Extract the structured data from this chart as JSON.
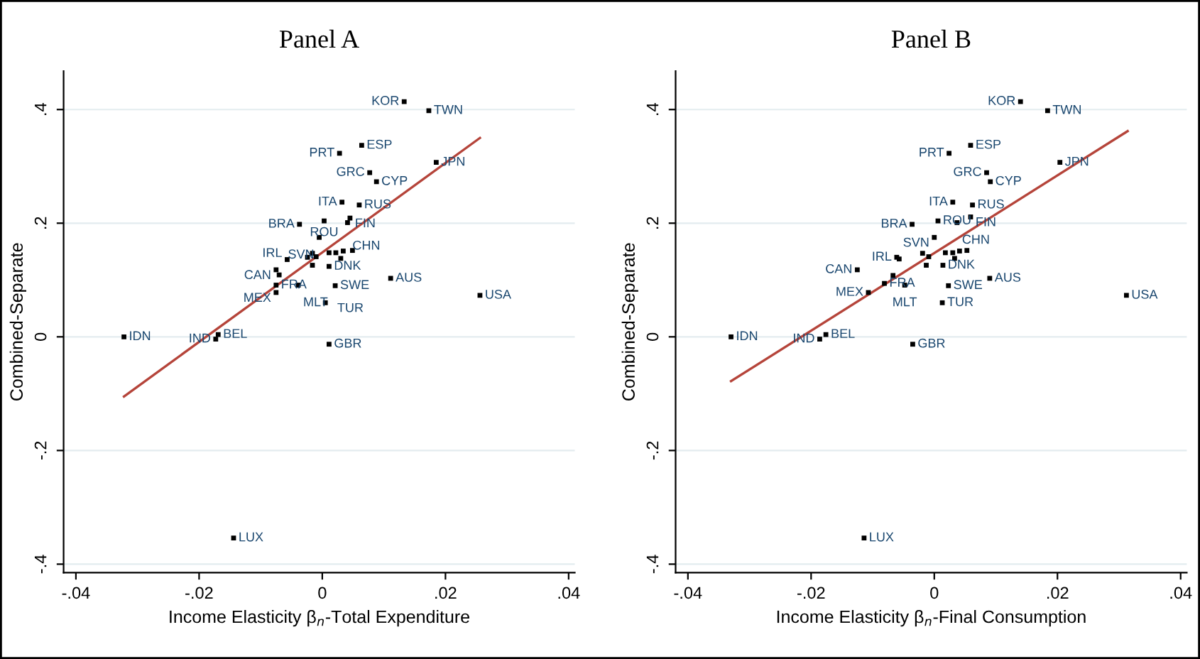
{
  "chart_data": [
    {
      "type": "scatter",
      "title": "Panel A",
      "xlabel": "Income Elasticity β$_{n}$-Total Expenditure",
      "ylabel": "Combined-Separate",
      "xlim": [
        -0.042,
        0.041
      ],
      "ylim": [
        -0.415,
        0.4675
      ],
      "xticks": [
        {
          "value": -0.04,
          "label": "-.04"
        },
        {
          "value": -0.02,
          "label": "-.02"
        },
        0,
        {
          "value": 0.02,
          "label": ".02"
        },
        {
          "value": 0.04,
          "label": ".04"
        }
      ],
      "yticks": [
        {
          "value": -0.4,
          "label": "-.4"
        },
        {
          "value": -0.2,
          "label": "-.2"
        },
        0,
        {
          "value": 0.2,
          "label": ".2"
        },
        {
          "value": 0.4,
          "label": ".4"
        }
      ],
      "grid": "y",
      "marker": "square",
      "series": [
        {
          "color": "#000000",
          "x": [
            0.0133,
            0.0173,
            0.0064,
            0.0028,
            0.0185,
            0.0077,
            0.0088,
            0.0032,
            0.006,
            0.0045,
            -0.0037,
            0.0003,
            0.0041,
            -0.0005,
            -0.0057,
            -0.0075,
            -0.0075,
            -0.0075,
            -0.0039,
            0.0021,
            0.0005,
            0.0111,
            0.0256,
            -0.0322,
            -0.0169,
            -0.0173,
            0.0011,
            -0.0144,
            0.0011,
            -0.0016,
            -0.0024,
            -0.0016,
            -0.001,
            0.0011,
            0.0022,
            0.0034,
            0.0049,
            0.003,
            -0.007
          ],
          "values": [
            0.414,
            0.398,
            0.337,
            0.323,
            0.307,
            0.289,
            0.273,
            0.237,
            0.232,
            0.209,
            0.198,
            0.204,
            0.201,
            0.175,
            0.136,
            0.118,
            0.091,
            0.078,
            0.091,
            0.09,
            0.06,
            0.103,
            0.073,
            0.0,
            0.004,
            -0.004,
            -0.013,
            -0.354,
            0.124,
            0.126,
            0.14,
            0.147,
            0.141,
            0.148,
            0.148,
            0.151,
            0.152,
            0.138,
            0.109
          ],
          "value_labels": [
            "KOR",
            "TWN",
            "ESP",
            "PRT",
            "JPN",
            "GRC",
            "CYP",
            "ITA",
            "RUS",
            "FIN",
            "BRA",
            "ROU",
            "CHN",
            "SVN",
            "IRL",
            "CAN",
            "FRA",
            "MEX",
            "MLT",
            "SWE",
            "TUR",
            "AUS",
            "USA",
            "IDN",
            "BEL",
            "IND",
            "GBR",
            "LUX",
            "DNK",
            null,
            null,
            null,
            null,
            null,
            null,
            null,
            null,
            null,
            null
          ]
        },
        {
          "type": "line",
          "color": "#b5443a",
          "x": [
            -0.0322,
            0.0256
          ],
          "values": [
            -0.105,
            0.35
          ],
          "marker": "none"
        }
      ]
    },
    {
      "type": "scatter",
      "title": "Panel B",
      "xlabel": "Income Elasticity β$_{n}$-Final Consumption",
      "ylabel": "Combined-Separate",
      "xlim": [
        -0.042,
        0.041
      ],
      "ylim": [
        -0.415,
        0.4675
      ],
      "xticks": [
        {
          "value": -0.04,
          "label": "-.04"
        },
        {
          "value": -0.02,
          "label": "-.02"
        },
        0,
        {
          "value": 0.02,
          "label": ".02"
        },
        {
          "value": 0.04,
          "label": ".04"
        }
      ],
      "yticks": [
        {
          "value": -0.4,
          "label": "-.4"
        },
        {
          "value": -0.2,
          "label": "-.2"
        },
        0,
        {
          "value": 0.2,
          "label": ".2"
        },
        {
          "value": 0.4,
          "label": ".4"
        }
      ],
      "grid": "y",
      "marker": "square",
      "series": [
        {
          "color": "#000000",
          "x": [
            0.014,
            0.0184,
            0.0059,
            0.0024,
            0.0204,
            0.0085,
            0.0091,
            0.003,
            0.0062,
            0.0059,
            -0.0036,
            0.0006,
            0.0037,
            0.0,
            -0.0061,
            -0.0057,
            -0.0125,
            -0.0067,
            -0.0081,
            -0.0048,
            -0.0107,
            0.0023,
            0.0013,
            0.009,
            0.0312,
            -0.033,
            -0.0176,
            -0.0186,
            -0.0035,
            -0.0114,
            -0.0019,
            -0.0009,
            -0.0013,
            0.0014,
            0.0018,
            0.003,
            0.0041,
            0.0053,
            0.0033
          ],
          "values": [
            0.414,
            0.398,
            0.337,
            0.323,
            0.307,
            0.289,
            0.273,
            0.237,
            0.232,
            0.211,
            0.198,
            0.204,
            0.201,
            0.175,
            0.14,
            0.137,
            0.118,
            0.108,
            0.094,
            0.091,
            0.078,
            0.09,
            0.06,
            0.103,
            0.073,
            0.0,
            0.004,
            -0.004,
            -0.013,
            -0.354,
            0.147,
            0.141,
            0.126,
            0.126,
            0.148,
            0.148,
            0.151,
            0.152,
            0.138
          ],
          "value_labels": [
            "KOR",
            "TWN",
            "ESP",
            "PRT",
            "JPN",
            "GRC",
            "CYP",
            "ITA",
            "RUS",
            "FIN",
            "BRA",
            "ROU",
            "CHN",
            "SVN",
            "IRL",
            null,
            "CAN",
            null,
            "FRA",
            "MLT",
            "MEX",
            "SWE",
            "TUR",
            "AUS",
            "USA",
            "IDN",
            "BEL",
            "IND",
            "GBR",
            "LUX",
            null,
            null,
            null,
            "DNK",
            null,
            null,
            null,
            null,
            null
          ]
        },
        {
          "type": "line",
          "color": "#b5443a",
          "x": [
            -0.033,
            0.0314
          ],
          "values": [
            -0.078,
            0.362
          ],
          "marker": "none"
        }
      ]
    }
  ]
}
